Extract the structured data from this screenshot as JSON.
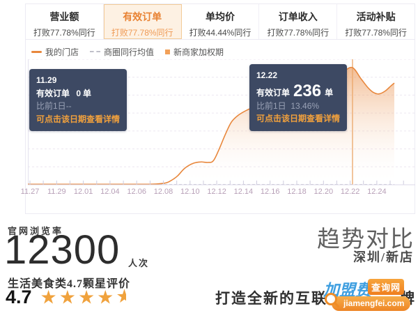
{
  "tabs": [
    {
      "title": "营业额",
      "subtitle": "打败77.78%同行",
      "active": false
    },
    {
      "title": "有效订单",
      "subtitle": "打败77.78%同行",
      "active": true
    },
    {
      "title": "单均价",
      "subtitle": "打败44.44%同行",
      "active": false
    },
    {
      "title": "订单收入",
      "subtitle": "打败77.78%同行",
      "active": false
    },
    {
      "title": "活动补贴",
      "subtitle": "打败77.78%同行",
      "active": false
    }
  ],
  "legend": [
    {
      "label": "我的门店",
      "swatch": "orange-line",
      "color": "#e8873c"
    },
    {
      "label": "商圈同行均值",
      "swatch": "gray-dashed",
      "color": "#bfbfc9"
    },
    {
      "label": "新商家加权期",
      "swatch": "orange-square",
      "color": "#f2a159"
    }
  ],
  "tooltips": [
    {
      "date": "11.29",
      "metric_label": "有效订单",
      "value": "0",
      "unit": "单",
      "compare_label": "比前1日",
      "compare_value": "--",
      "hint": "可点击该日期查看详情"
    },
    {
      "date": "12.22",
      "metric_label": "有效订单",
      "value": "236",
      "unit": "单",
      "compare_label": "比前1日",
      "compare_value": "13.46%",
      "hint": "可点击该日期查看详情"
    }
  ],
  "chart_data": {
    "type": "area",
    "x_labels": [
      "11.27",
      "11.29",
      "12.01",
      "12.04",
      "12.06",
      "12.08",
      "12.10",
      "12.12",
      "12.14",
      "12.16",
      "12.18",
      "12.20",
      "12.22",
      "12.24"
    ],
    "ylim": [
      0,
      250
    ],
    "grid": "dashed-horizontal",
    "legend_position": "top-left",
    "series": [
      {
        "name": "我的门店",
        "color": "#e8873c",
        "style": "solid-line-with-gradient-area",
        "points": [
          [
            0,
            1
          ],
          [
            100,
            1
          ],
          [
            170,
            1
          ],
          [
            195,
            3
          ],
          [
            205,
            8
          ],
          [
            215,
            18
          ],
          [
            225,
            33
          ],
          [
            237,
            43
          ],
          [
            248,
            46
          ],
          [
            258,
            45
          ],
          [
            266,
            48
          ],
          [
            274,
            70
          ],
          [
            283,
            100
          ],
          [
            292,
            126
          ],
          [
            302,
            140
          ],
          [
            314,
            150
          ],
          [
            332,
            161
          ],
          [
            356,
            176
          ],
          [
            382,
            194
          ],
          [
            410,
            210
          ],
          [
            436,
            221
          ],
          [
            453,
            229
          ],
          [
            466,
            236
          ],
          [
            478,
            214
          ],
          [
            488,
            196
          ],
          [
            496,
            186
          ],
          [
            504,
            183
          ],
          [
            513,
            189
          ],
          [
            521,
            199
          ],
          [
            526,
            205
          ]
        ]
      }
    ],
    "peer_series": {
      "name": "商圈同行均值",
      "style": "dashed-line",
      "color": "#c3c2cc",
      "approx_value": 0
    },
    "highlight": {
      "date": "12.22",
      "value": 236,
      "x": 466
    },
    "known_points": [
      {
        "date": "11.29",
        "value": 0
      },
      {
        "date": "12.22",
        "value": 236
      }
    ]
  },
  "footer": {
    "views_label": "官网浏览率",
    "views_value": "12300",
    "views_unit": "人次",
    "rating_caption": "生活美食类4.7颗星评价",
    "rating_value": "4.7",
    "stars_full": "★★★★",
    "star_half": "★",
    "trend_title": "趋势对比",
    "trend_subtitle": "深圳/新店",
    "slogan_left": "打造全新的互联",
    "slogan_right": "牌"
  },
  "watermark": {
    "brand": "加盟费",
    "badge": "查询网",
    "domain": "jiamengfei.com"
  }
}
